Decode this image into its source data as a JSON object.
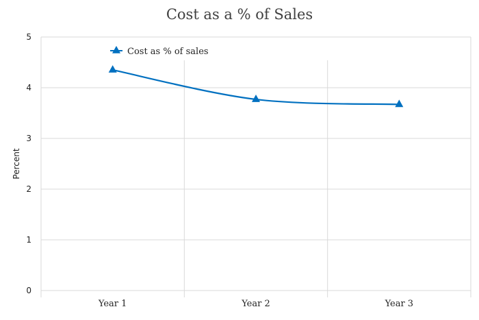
{
  "chart_data": {
    "type": "line",
    "title": "Cost as a % of Sales",
    "xlabel": "",
    "ylabel": "Percent",
    "categories": [
      "Year 1",
      "Year 2",
      "Year 3"
    ],
    "series": [
      {
        "name": "Cost as % of sales",
        "values": [
          4.35,
          3.77,
          3.67
        ],
        "color": "#0070c0",
        "marker": "triangle",
        "smooth": true
      }
    ],
    "ylim": [
      0,
      5
    ],
    "yticks": [
      "0",
      "1",
      "2",
      "3",
      "4",
      "5"
    ],
    "grid": true,
    "legend_position": "top-left"
  }
}
